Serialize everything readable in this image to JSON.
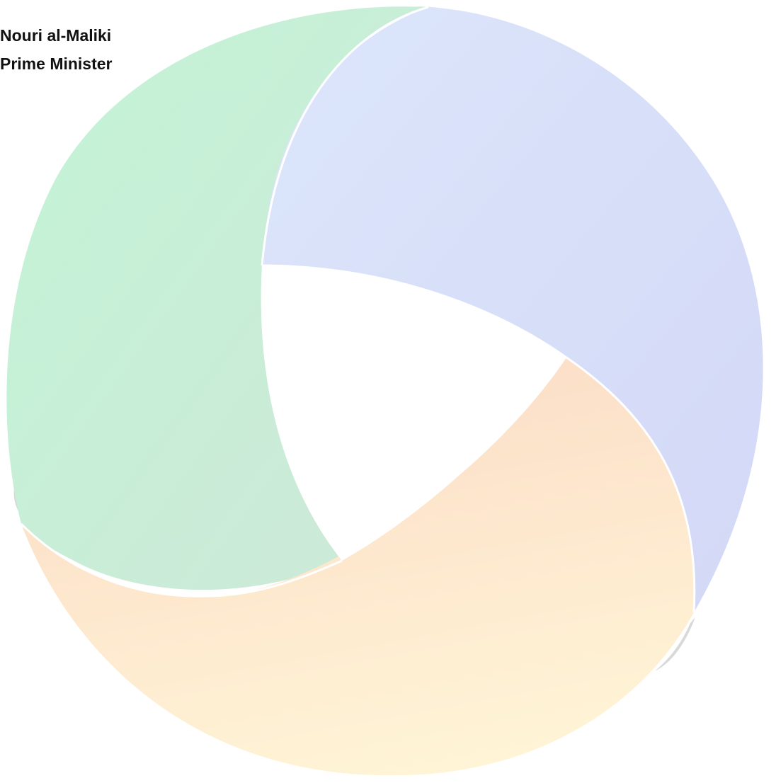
{
  "caption": {
    "name": "Nouri al-Maliki",
    "role": "Prime Minister"
  },
  "graphic": {
    "icon": "three-segment-ring-logo",
    "colors": {
      "green": "#c6f5d7",
      "blue": "#d6def9",
      "orange": "#fde3cc",
      "yellow": "#fff3d4",
      "shadow": "#d6d6d6"
    }
  }
}
